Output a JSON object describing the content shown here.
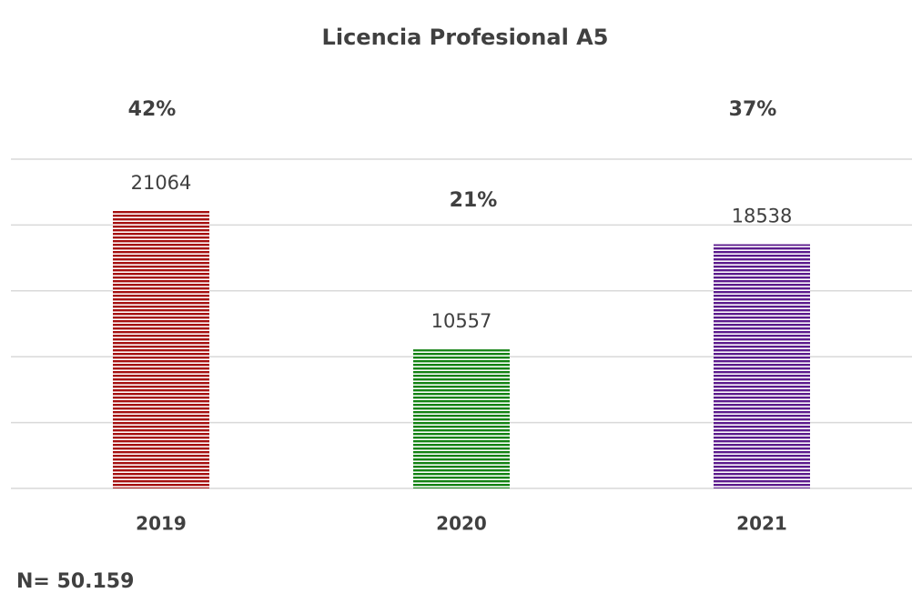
{
  "chart_data": {
    "type": "bar",
    "title": "Licencia Profesional A5",
    "categories": [
      "2019",
      "2020",
      "2021"
    ],
    "values": [
      21064,
      10557,
      18538
    ],
    "colors": [
      "#a50f0f",
      "#128212",
      "#5b1a8c"
    ],
    "percentages": {
      "values": [
        42,
        21,
        37
      ],
      "value_labels": [
        "42%",
        "21%",
        "37%"
      ]
    },
    "ylim": [
      0,
      25000
    ],
    "yticks": [
      0,
      5000,
      10000,
      15000,
      20000,
      25000
    ],
    "grid": true,
    "note": "N= 50.159"
  }
}
